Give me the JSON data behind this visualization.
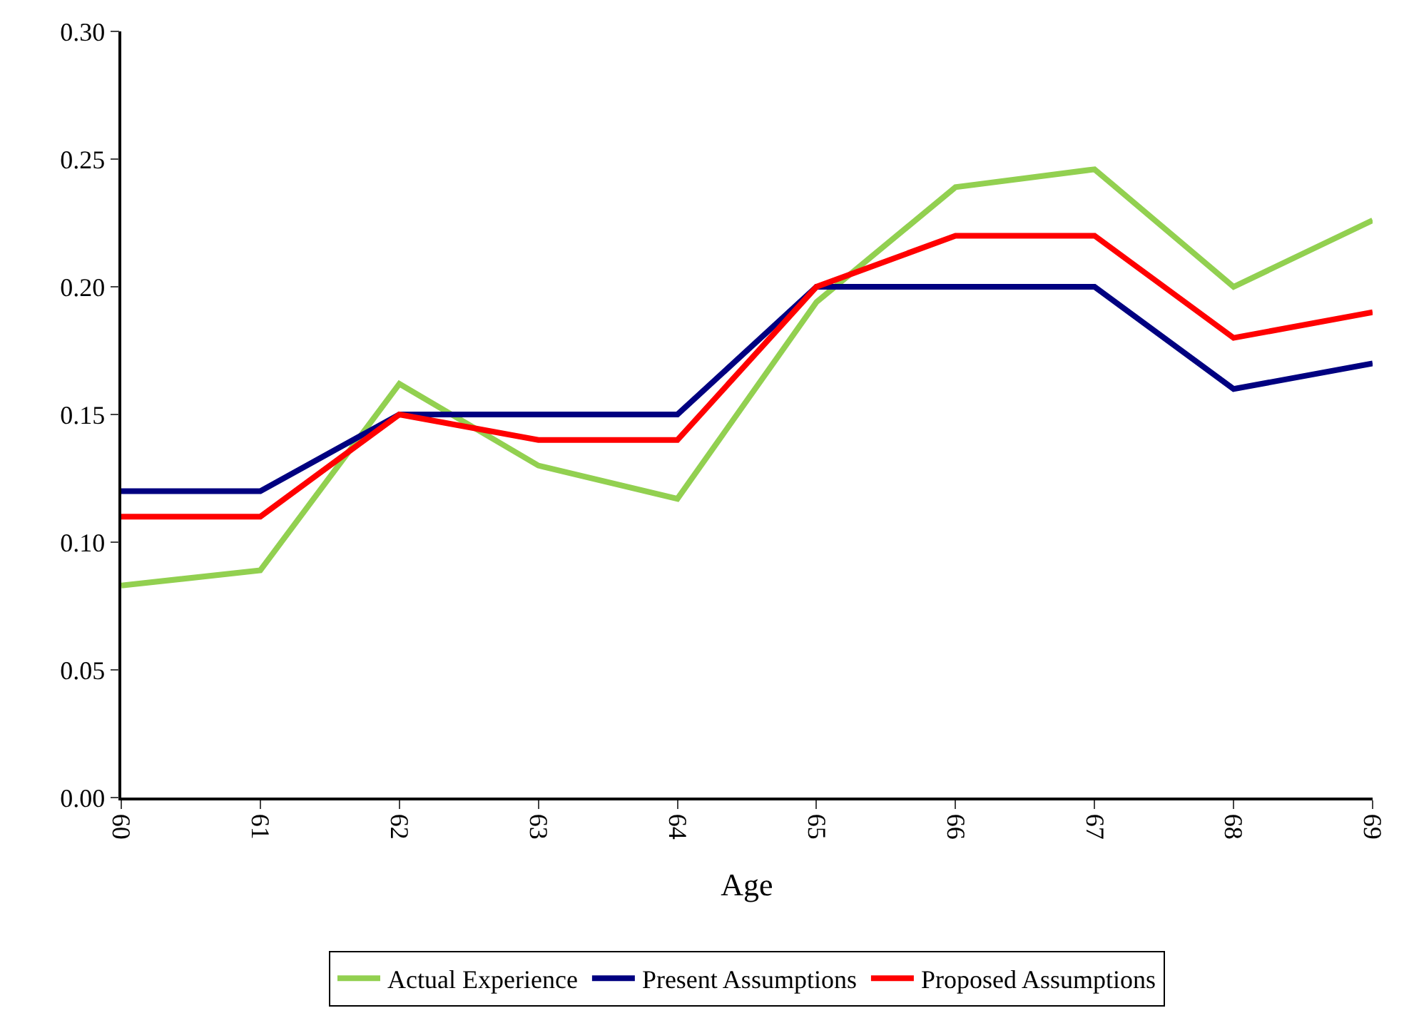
{
  "chart_data": {
    "type": "line",
    "xlabel": "Age",
    "x": [
      60,
      61,
      62,
      63,
      64,
      65,
      66,
      67,
      68,
      69
    ],
    "xlim": [
      60,
      69
    ],
    "xticks": [
      60,
      61,
      62,
      63,
      64,
      65,
      66,
      67,
      68,
      69
    ],
    "ylim": [
      0,
      0.3
    ],
    "yticks": [
      {
        "value": 0,
        "label": "0.00"
      },
      {
        "value": 0.05,
        "label": "0.05"
      },
      {
        "value": 0.1,
        "label": "0.10"
      },
      {
        "value": 0.15,
        "label": "0.15"
      },
      {
        "value": 0.2,
        "label": "0.20"
      },
      {
        "value": 0.25,
        "label": "0.25"
      },
      {
        "value": 0.3,
        "label": "0.30"
      }
    ],
    "legend": "bottom",
    "marker": "none",
    "line_style": "solid",
    "series": [
      {
        "name": "Actual Experience",
        "color": "#92d050",
        "values": [
          0.083,
          0.089,
          0.162,
          0.13,
          0.117,
          0.194,
          0.239,
          0.246,
          0.2,
          0.226
        ]
      },
      {
        "name": "Present Assumptions",
        "color": "#000080",
        "values": [
          0.12,
          0.12,
          0.15,
          0.15,
          0.15,
          0.2,
          0.2,
          0.2,
          0.16,
          0.17
        ]
      },
      {
        "name": "Proposed Assumptions",
        "color": "#ff0000",
        "values": [
          0.11,
          0.11,
          0.15,
          0.14,
          0.14,
          0.2,
          0.22,
          0.22,
          0.18,
          0.19
        ]
      }
    ]
  }
}
